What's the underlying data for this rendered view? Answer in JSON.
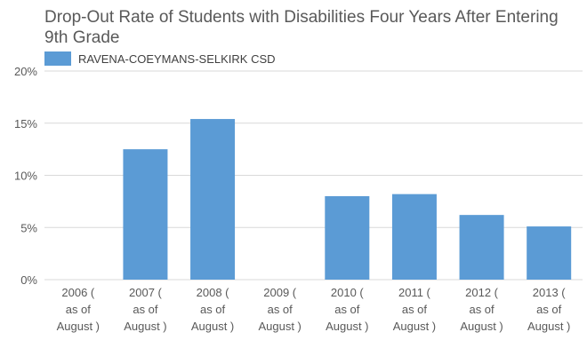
{
  "chart_data": {
    "type": "bar",
    "title": "Drop-Out Rate of Students with Disabilities Four Years After Entering 9th Grade",
    "xlabel": "",
    "ylabel": "",
    "categories": [
      [
        "2006 (",
        "as of",
        "August )"
      ],
      [
        "2007 (",
        "as of",
        "August )"
      ],
      [
        "2008 (",
        "as of",
        "August )"
      ],
      [
        "2009 (",
        "as of",
        "August )"
      ],
      [
        "2010 (",
        "as of",
        "August )"
      ],
      [
        "2011 (",
        "as of",
        "August )"
      ],
      [
        "2012 (",
        "as of",
        "August )"
      ],
      [
        "2013 (",
        "as of",
        "August )"
      ]
    ],
    "series": [
      {
        "name": "RAVENA-COEYMANS-SELKIRK CSD",
        "values": [
          0,
          12.5,
          15.4,
          0,
          8.0,
          8.2,
          6.2,
          5.1
        ],
        "color": "#5b9bd5"
      }
    ],
    "ylim": [
      0,
      20
    ],
    "yticks": [
      "0%",
      "5%",
      "10%",
      "15%",
      "20%"
    ],
    "ytick_values": [
      0,
      5,
      10,
      15,
      20
    ],
    "grid": true,
    "legend_position": "top-left"
  }
}
